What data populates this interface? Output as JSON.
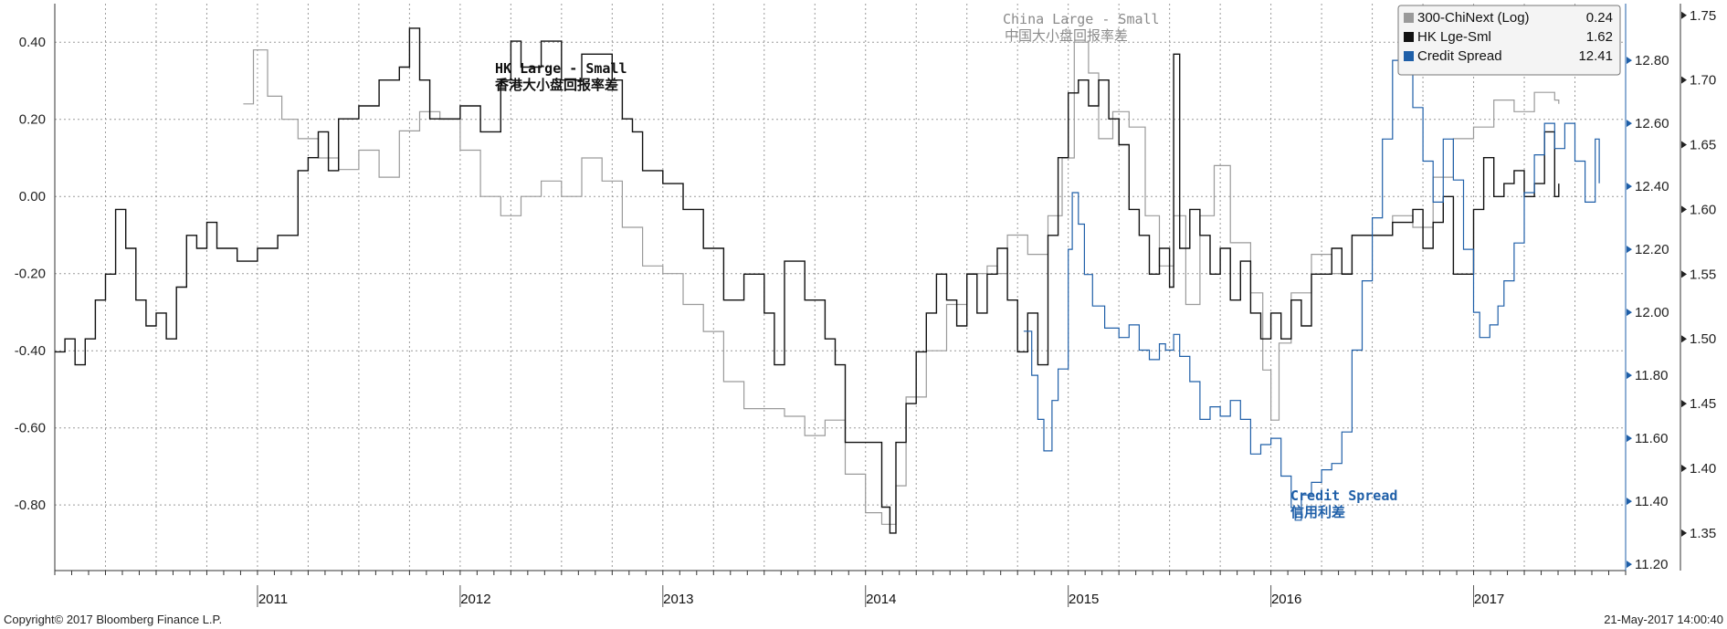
{
  "chart_data": {
    "type": "line",
    "years": [
      "2011",
      "2012",
      "2013",
      "2014",
      "2015",
      "2016",
      "2017"
    ],
    "left_axis": {
      "ticks": [
        "0.40",
        "0.20",
        "0.00",
        "-0.20",
        "-0.40",
        "-0.60",
        "-0.80"
      ],
      "range": [
        -0.97,
        0.5
      ]
    },
    "right_axis_inner": {
      "ticks": [
        "12.80",
        "12.60",
        "12.40",
        "12.20",
        "12.00",
        "11.80",
        "11.60",
        "11.40",
        "11.20"
      ],
      "range": [
        11.18,
        12.98
      ],
      "color": "#1f5fa8"
    },
    "right_axis_outer": {
      "ticks": [
        "1.75",
        "1.70",
        "1.65",
        "1.60",
        "1.55",
        "1.50",
        "1.45",
        "1.40",
        "1.35"
      ],
      "range": [
        1.321,
        1.759
      ]
    },
    "legend": [
      {
        "label": "300-ChiNext (Log)",
        "value": "0.24",
        "color": "#9a9a9a"
      },
      {
        "label": "HK Lge-Sml",
        "value": "1.62",
        "color": "#111111"
      },
      {
        "label": "Credit Spread",
        "value": "12.41",
        "color": "#1f5fa8"
      }
    ],
    "annotations": {
      "hk_en": "HK Large - Small",
      "hk_cn": "香港大小盘回报率差",
      "china_en": "China Large - Small",
      "china_cn": "中国大小盘回报率差",
      "credit_en": "Credit Spread",
      "credit_cn": "信用利差"
    },
    "series": [
      {
        "name": "300-ChiNext (Log)",
        "axis": "left",
        "color": "#9a9a9a",
        "points": [
          [
            2010.93,
            0.24
          ],
          [
            2010.98,
            0.38
          ],
          [
            2011.05,
            0.26
          ],
          [
            2011.12,
            0.2
          ],
          [
            2011.2,
            0.15
          ],
          [
            2011.3,
            0.1
          ],
          [
            2011.4,
            0.07
          ],
          [
            2011.5,
            0.12
          ],
          [
            2011.6,
            0.05
          ],
          [
            2011.7,
            0.17
          ],
          [
            2011.8,
            0.22
          ],
          [
            2011.9,
            0.2
          ],
          [
            2012.0,
            0.12
          ],
          [
            2012.1,
            0.0
          ],
          [
            2012.2,
            -0.05
          ],
          [
            2012.3,
            0.0
          ],
          [
            2012.4,
            0.04
          ],
          [
            2012.5,
            0.0
          ],
          [
            2012.6,
            0.1
          ],
          [
            2012.7,
            0.04
          ],
          [
            2012.8,
            -0.08
          ],
          [
            2012.9,
            -0.18
          ],
          [
            2013.0,
            -0.2
          ],
          [
            2013.1,
            -0.28
          ],
          [
            2013.2,
            -0.35
          ],
          [
            2013.3,
            -0.48
          ],
          [
            2013.4,
            -0.55
          ],
          [
            2013.5,
            -0.55
          ],
          [
            2013.6,
            -0.57
          ],
          [
            2013.7,
            -0.62
          ],
          [
            2013.8,
            -0.58
          ],
          [
            2013.9,
            -0.72
          ],
          [
            2014.0,
            -0.82
          ],
          [
            2014.08,
            -0.85
          ],
          [
            2014.15,
            -0.75
          ],
          [
            2014.2,
            -0.52
          ],
          [
            2014.3,
            -0.4
          ],
          [
            2014.4,
            -0.28
          ],
          [
            2014.5,
            -0.2
          ],
          [
            2014.6,
            -0.18
          ],
          [
            2014.65,
            -0.2
          ],
          [
            2014.7,
            -0.1
          ],
          [
            2014.8,
            -0.15
          ],
          [
            2014.9,
            -0.05
          ],
          [
            2014.97,
            0.1
          ],
          [
            2015.03,
            0.4
          ],
          [
            2015.1,
            0.32
          ],
          [
            2015.15,
            0.15
          ],
          [
            2015.22,
            0.22
          ],
          [
            2015.3,
            0.18
          ],
          [
            2015.38,
            -0.05
          ],
          [
            2015.45,
            -0.18
          ],
          [
            2015.52,
            -0.05
          ],
          [
            2015.58,
            -0.28
          ],
          [
            2015.65,
            -0.05
          ],
          [
            2015.72,
            0.08
          ],
          [
            2015.8,
            -0.12
          ],
          [
            2015.9,
            -0.25
          ],
          [
            2015.96,
            -0.45
          ],
          [
            2016.0,
            -0.58
          ],
          [
            2016.04,
            -0.38
          ],
          [
            2016.1,
            -0.25
          ],
          [
            2016.2,
            -0.15
          ],
          [
            2016.3,
            -0.2
          ],
          [
            2016.4,
            -0.1
          ],
          [
            2016.5,
            -0.1
          ],
          [
            2016.6,
            -0.05
          ],
          [
            2016.7,
            -0.08
          ],
          [
            2016.8,
            0.05
          ],
          [
            2016.9,
            0.15
          ],
          [
            2017.0,
            0.18
          ],
          [
            2017.1,
            0.25
          ],
          [
            2017.2,
            0.22
          ],
          [
            2017.3,
            0.27
          ],
          [
            2017.4,
            0.25
          ],
          [
            2017.42,
            0.24
          ]
        ]
      },
      {
        "name": "HK Lge-Sml",
        "axis": "right_outer",
        "color": "#111111",
        "points": [
          [
            2010.0,
            1.49
          ],
          [
            2010.05,
            1.5
          ],
          [
            2010.1,
            1.48
          ],
          [
            2010.15,
            1.5
          ],
          [
            2010.2,
            1.53
          ],
          [
            2010.25,
            1.55
          ],
          [
            2010.3,
            1.6
          ],
          [
            2010.35,
            1.57
          ],
          [
            2010.4,
            1.53
          ],
          [
            2010.45,
            1.51
          ],
          [
            2010.5,
            1.52
          ],
          [
            2010.55,
            1.5
          ],
          [
            2010.6,
            1.54
          ],
          [
            2010.65,
            1.58
          ],
          [
            2010.7,
            1.57
          ],
          [
            2010.75,
            1.59
          ],
          [
            2010.8,
            1.57
          ],
          [
            2010.9,
            1.56
          ],
          [
            2011.0,
            1.57
          ],
          [
            2011.1,
            1.58
          ],
          [
            2011.2,
            1.63
          ],
          [
            2011.25,
            1.64
          ],
          [
            2011.3,
            1.66
          ],
          [
            2011.35,
            1.63
          ],
          [
            2011.4,
            1.67
          ],
          [
            2011.5,
            1.68
          ],
          [
            2011.6,
            1.7
          ],
          [
            2011.7,
            1.71
          ],
          [
            2011.75,
            1.74
          ],
          [
            2011.8,
            1.7
          ],
          [
            2011.85,
            1.67
          ],
          [
            2011.95,
            1.67
          ],
          [
            2012.0,
            1.68
          ],
          [
            2012.1,
            1.66
          ],
          [
            2012.2,
            1.7
          ],
          [
            2012.25,
            1.73
          ],
          [
            2012.3,
            1.71
          ],
          [
            2012.4,
            1.73
          ],
          [
            2012.5,
            1.7
          ],
          [
            2012.6,
            1.72
          ],
          [
            2012.7,
            1.72
          ],
          [
            2012.75,
            1.7
          ],
          [
            2012.8,
            1.67
          ],
          [
            2012.85,
            1.66
          ],
          [
            2012.9,
            1.63
          ],
          [
            2013.0,
            1.62
          ],
          [
            2013.1,
            1.6
          ],
          [
            2013.2,
            1.57
          ],
          [
            2013.3,
            1.53
          ],
          [
            2013.4,
            1.55
          ],
          [
            2013.5,
            1.52
          ],
          [
            2013.55,
            1.48
          ],
          [
            2013.6,
            1.56
          ],
          [
            2013.7,
            1.53
          ],
          [
            2013.8,
            1.5
          ],
          [
            2013.85,
            1.48
          ],
          [
            2013.9,
            1.42
          ],
          [
            2014.0,
            1.42
          ],
          [
            2014.08,
            1.37
          ],
          [
            2014.12,
            1.35
          ],
          [
            2014.15,
            1.42
          ],
          [
            2014.2,
            1.45
          ],
          [
            2014.25,
            1.49
          ],
          [
            2014.3,
            1.52
          ],
          [
            2014.35,
            1.55
          ],
          [
            2014.4,
            1.53
          ],
          [
            2014.45,
            1.51
          ],
          [
            2014.5,
            1.55
          ],
          [
            2014.55,
            1.52
          ],
          [
            2014.6,
            1.55
          ],
          [
            2014.65,
            1.57
          ],
          [
            2014.7,
            1.53
          ],
          [
            2014.75,
            1.49
          ],
          [
            2014.8,
            1.52
          ],
          [
            2014.85,
            1.48
          ],
          [
            2014.9,
            1.58
          ],
          [
            2014.95,
            1.64
          ],
          [
            2015.0,
            1.69
          ],
          [
            2015.05,
            1.7
          ],
          [
            2015.1,
            1.68
          ],
          [
            2015.15,
            1.7
          ],
          [
            2015.2,
            1.67
          ],
          [
            2015.25,
            1.65
          ],
          [
            2015.3,
            1.6
          ],
          [
            2015.35,
            1.58
          ],
          [
            2015.4,
            1.55
          ],
          [
            2015.45,
            1.57
          ],
          [
            2015.5,
            1.54
          ],
          [
            2015.52,
            1.72
          ],
          [
            2015.55,
            1.57
          ],
          [
            2015.6,
            1.6
          ],
          [
            2015.65,
            1.58
          ],
          [
            2015.7,
            1.55
          ],
          [
            2015.75,
            1.57
          ],
          [
            2015.8,
            1.53
          ],
          [
            2015.85,
            1.56
          ],
          [
            2015.9,
            1.52
          ],
          [
            2015.95,
            1.5
          ],
          [
            2016.0,
            1.52
          ],
          [
            2016.05,
            1.5
          ],
          [
            2016.1,
            1.53
          ],
          [
            2016.15,
            1.51
          ],
          [
            2016.2,
            1.55
          ],
          [
            2016.3,
            1.57
          ],
          [
            2016.35,
            1.55
          ],
          [
            2016.4,
            1.58
          ],
          [
            2016.5,
            1.58
          ],
          [
            2016.6,
            1.59
          ],
          [
            2016.7,
            1.6
          ],
          [
            2016.75,
            1.57
          ],
          [
            2016.8,
            1.59
          ],
          [
            2016.85,
            1.61
          ],
          [
            2016.9,
            1.55
          ],
          [
            2017.0,
            1.6
          ],
          [
            2017.05,
            1.64
          ],
          [
            2017.1,
            1.61
          ],
          [
            2017.15,
            1.62
          ],
          [
            2017.2,
            1.63
          ],
          [
            2017.25,
            1.61
          ],
          [
            2017.3,
            1.62
          ],
          [
            2017.35,
            1.66
          ],
          [
            2017.4,
            1.61
          ],
          [
            2017.42,
            1.62
          ]
        ]
      },
      {
        "name": "Credit Spread",
        "axis": "right_inner",
        "color": "#1f5fa8",
        "points": [
          [
            2014.78,
            11.94
          ],
          [
            2014.82,
            11.8
          ],
          [
            2014.85,
            11.66
          ],
          [
            2014.88,
            11.56
          ],
          [
            2014.92,
            11.72
          ],
          [
            2014.95,
            11.82
          ],
          [
            2015.0,
            12.2
          ],
          [
            2015.02,
            12.38
          ],
          [
            2015.05,
            12.28
          ],
          [
            2015.08,
            12.12
          ],
          [
            2015.12,
            12.02
          ],
          [
            2015.18,
            11.95
          ],
          [
            2015.25,
            11.92
          ],
          [
            2015.3,
            11.96
          ],
          [
            2015.35,
            11.88
          ],
          [
            2015.4,
            11.85
          ],
          [
            2015.45,
            11.9
          ],
          [
            2015.48,
            11.88
          ],
          [
            2015.52,
            11.93
          ],
          [
            2015.55,
            11.86
          ],
          [
            2015.6,
            11.78
          ],
          [
            2015.65,
            11.66
          ],
          [
            2015.7,
            11.7
          ],
          [
            2015.75,
            11.67
          ],
          [
            2015.8,
            11.72
          ],
          [
            2015.85,
            11.66
          ],
          [
            2015.9,
            11.55
          ],
          [
            2015.95,
            11.58
          ],
          [
            2016.0,
            11.6
          ],
          [
            2016.05,
            11.48
          ],
          [
            2016.1,
            11.38
          ],
          [
            2016.12,
            11.34
          ],
          [
            2016.15,
            11.42
          ],
          [
            2016.2,
            11.46
          ],
          [
            2016.25,
            11.5
          ],
          [
            2016.3,
            11.52
          ],
          [
            2016.35,
            11.62
          ],
          [
            2016.4,
            11.88
          ],
          [
            2016.45,
            12.1
          ],
          [
            2016.5,
            12.3
          ],
          [
            2016.55,
            12.55
          ],
          [
            2016.6,
            12.8
          ],
          [
            2016.65,
            12.82
          ],
          [
            2016.7,
            12.65
          ],
          [
            2016.75,
            12.48
          ],
          [
            2016.8,
            12.35
          ],
          [
            2016.85,
            12.55
          ],
          [
            2016.9,
            12.42
          ],
          [
            2016.95,
            12.2
          ],
          [
            2017.0,
            12.0
          ],
          [
            2017.03,
            11.92
          ],
          [
            2017.08,
            11.96
          ],
          [
            2017.12,
            12.02
          ],
          [
            2017.15,
            12.1
          ],
          [
            2017.2,
            12.22
          ],
          [
            2017.25,
            12.38
          ],
          [
            2017.3,
            12.5
          ],
          [
            2017.35,
            12.6
          ],
          [
            2017.4,
            12.52
          ],
          [
            2017.45,
            12.6
          ],
          [
            2017.5,
            12.48
          ],
          [
            2017.55,
            12.35
          ],
          [
            2017.6,
            12.55
          ],
          [
            2017.62,
            12.41
          ]
        ]
      }
    ]
  },
  "footer": {
    "copyright": "Copyright© 2017 Bloomberg Finance L.P.",
    "timestamp": "21-May-2017 14:00:40"
  }
}
